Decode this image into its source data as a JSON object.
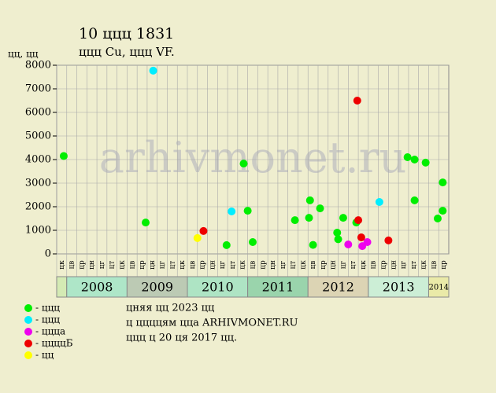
{
  "chart_data": {
    "type": "scatter",
    "title": "10 ццц 1831",
    "subtitle": "ццц Cu, ццц VF.",
    "y_label": "цц, цц",
    "watermark": "arhivmonet.ru",
    "ylim": [
      0,
      8000
    ],
    "yticks": [
      0,
      1000,
      2000,
      3000,
      4000,
      5000,
      6000,
      7000,
      8000
    ],
    "xlim": [
      0,
      39
    ],
    "grid": true,
    "categories": [
      "цк",
      "цв",
      "цр",
      "цн",
      "цг",
      "цт",
      "цк",
      "цв",
      "цр",
      "цн",
      "цг",
      "цт",
      "цк",
      "цв",
      "цр",
      "цн",
      "цг",
      "цт",
      "цк",
      "цв",
      "цр",
      "цн",
      "цг",
      "цт",
      "цк",
      "цв",
      "цр",
      "цн",
      "цг",
      "цт",
      "цк",
      "цв",
      "цр",
      "цн",
      "цг",
      "цт",
      "цк",
      "цв",
      "цр"
    ],
    "years": [
      "2008",
      "2009",
      "2010",
      "2011",
      "2012",
      "2013",
      "2014"
    ],
    "series": [
      {
        "name": "- ццц",
        "color": "#00ee00",
        "x": [
          0.7,
          8.85,
          16.9,
          18.6,
          19.0,
          19.5,
          23.7,
          25.1,
          25.2,
          25.5,
          26.2,
          27.9,
          28.0,
          28.5,
          29.8,
          34.9,
          35.6,
          35.6,
          36.7,
          37.9,
          38.4,
          38.4
        ],
        "values": [
          4150,
          1330,
          370,
          3830,
          1830,
          500,
          1430,
          1530,
          2270,
          380,
          1930,
          900,
          620,
          1530,
          1330,
          4100,
          4000,
          2270,
          3870,
          1500,
          3030,
          1830
        ]
      },
      {
        "name": "- ццц",
        "color": "#00eeff",
        "x": [
          9.6,
          17.4,
          32.1
        ],
        "values": [
          7770,
          1800,
          2200
        ]
      },
      {
        "name": "- ццца",
        "color": "#ee00ee",
        "x": [
          29.0,
          30.4,
          30.9
        ],
        "values": [
          400,
          330,
          500
        ]
      },
      {
        "name": "- ццццБ",
        "color": "#ee0000",
        "x": [
          14.6,
          29.9,
          30.0,
          30.3,
          33.0
        ],
        "values": [
          970,
          6500,
          1430,
          700,
          570
        ]
      },
      {
        "name": "- цц",
        "color": "#ffff00",
        "x": [
          14.0
        ],
        "values": [
          670
        ]
      }
    ],
    "notes": [
      "цняя цц 2023 цц",
      "ц ццццям цца ARHIVMONET.RU",
      "ццц ц 20 ця 2017 цц."
    ]
  }
}
